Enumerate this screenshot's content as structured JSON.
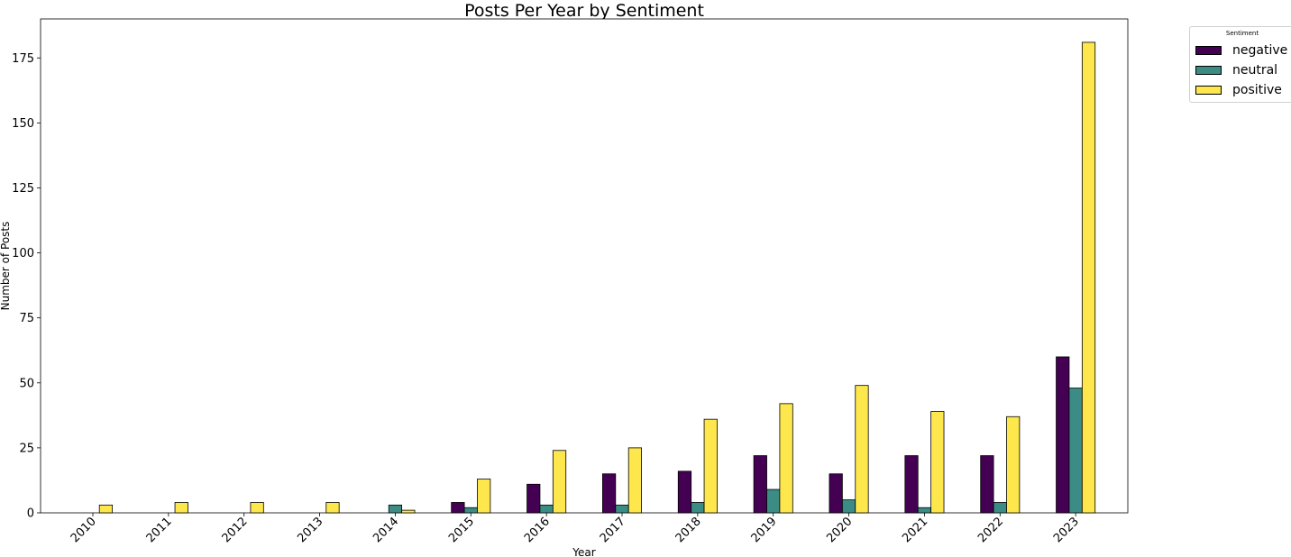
{
  "chart_data": {
    "type": "bar",
    "title": "Posts Per Year by Sentiment",
    "xlabel": "Year",
    "ylabel": "Number of Posts",
    "categories": [
      "2010",
      "2011",
      "2012",
      "2013",
      "2014",
      "2015",
      "2016",
      "2017",
      "2018",
      "2019",
      "2020",
      "2021",
      "2022",
      "2023"
    ],
    "series": [
      {
        "name": "negative",
        "color": "#440154",
        "values": [
          0,
          0,
          0,
          0,
          0,
          4,
          11,
          15,
          16,
          22,
          15,
          22,
          22,
          60
        ]
      },
      {
        "name": "neutral",
        "color": "#3b8c84",
        "values": [
          0,
          0,
          0,
          0,
          3,
          2,
          3,
          3,
          4,
          9,
          5,
          2,
          4,
          48
        ]
      },
      {
        "name": "positive",
        "color": "#fde74c",
        "values": [
          3,
          4,
          4,
          4,
          1,
          13,
          24,
          25,
          36,
          42,
          49,
          39,
          37,
          181
        ]
      }
    ],
    "ylim": [
      0,
      190
    ],
    "yticks": [
      "0",
      "25",
      "50",
      "75",
      "100",
      "125",
      "150",
      "175"
    ],
    "grid": false,
    "legend": {
      "title": "Sentiment",
      "position": "outside-top-right"
    }
  }
}
